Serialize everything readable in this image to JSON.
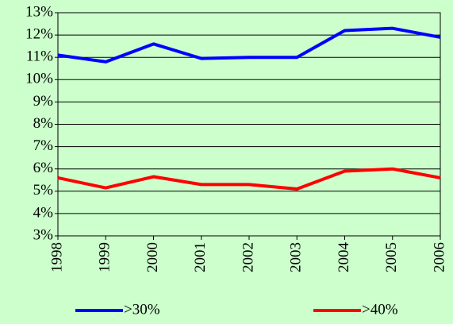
{
  "chart_data": {
    "type": "line",
    "categories": [
      "1998",
      "1999",
      "2000",
      "2001",
      "2002",
      "2003",
      "2004",
      "2005",
      "2006"
    ],
    "series": [
      {
        "name": ">30%",
        "color": "#0000ff",
        "values": [
          11.1,
          10.8,
          11.6,
          10.95,
          11.0,
          11.0,
          12.2,
          12.3,
          11.9
        ]
      },
      {
        "name": ">40%",
        "color": "#ff0000",
        "values": [
          5.6,
          5.15,
          5.65,
          5.3,
          5.3,
          5.1,
          5.9,
          6.0,
          5.6
        ]
      }
    ],
    "ylim": [
      3,
      13
    ],
    "yticks": [
      {
        "value": 3,
        "label": "3%"
      },
      {
        "value": 4,
        "label": "4%"
      },
      {
        "value": 5,
        "label": "5%"
      },
      {
        "value": 6,
        "label": "6%"
      },
      {
        "value": 7,
        "label": "7%"
      },
      {
        "value": 8,
        "label": "8%"
      },
      {
        "value": 9,
        "label": "9%"
      },
      {
        "value": 10,
        "label": "10%"
      },
      {
        "value": 11,
        "label": "11%"
      },
      {
        "value": 12,
        "label": "12%"
      },
      {
        "value": 13,
        "label": "13%"
      }
    ],
    "grid": true,
    "legend": "bottom"
  }
}
